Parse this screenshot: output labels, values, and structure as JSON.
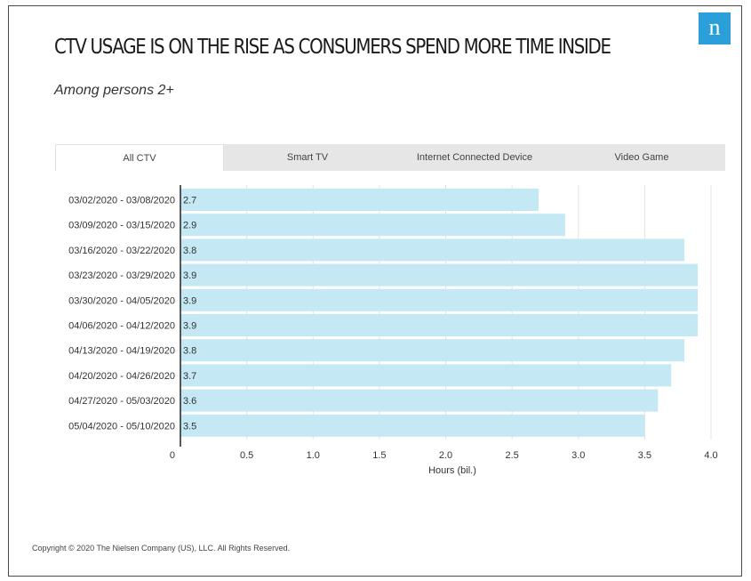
{
  "header": {
    "title": "CTV USAGE IS ON THE RISE AS CONSUMERS SPEND MORE TIME INSIDE",
    "subtitle": "Among persons 2+",
    "logo_text": "n"
  },
  "tabs": [
    {
      "label": "All CTV",
      "active": true
    },
    {
      "label": "Smart TV",
      "active": false
    },
    {
      "label": "Internet Connected Device",
      "active": false
    },
    {
      "label": "Video Game",
      "active": false
    }
  ],
  "chart_data": {
    "type": "bar",
    "orientation": "horizontal",
    "categories": [
      "03/02/2020 - 03/08/2020",
      "03/09/2020 - 03/15/2020",
      "03/16/2020 - 03/22/2020",
      "03/23/2020 - 03/29/2020",
      "03/30/2020 - 04/05/2020",
      "04/06/2020 - 04/12/2020",
      "04/13/2020 - 04/19/2020",
      "04/20/2020 - 04/26/2020",
      "04/27/2020 - 05/03/2020",
      "05/04/2020 - 05/10/2020"
    ],
    "values": [
      2.7,
      2.9,
      3.8,
      3.9,
      3.9,
      3.9,
      3.8,
      3.7,
      3.6,
      3.5
    ],
    "value_labels": [
      "2.7",
      "2.9",
      "3.8",
      "3.9",
      "3.9",
      "3.9",
      "3.8",
      "3.7",
      "3.6",
      "3.5"
    ],
    "xticks": [
      "0",
      "0.5",
      "1.0",
      "1.5",
      "2.0",
      "2.5",
      "3.0",
      "3.5",
      "4.0"
    ],
    "xlabel": "Hours (bil.)",
    "ylabel": "",
    "xlim": [
      0,
      4.0
    ],
    "grid": true,
    "bar_color": "#c5e8f5"
  },
  "footer": {
    "copyright": "Copyright © 2020 The Nielsen Company (US), LLC. All Rights Reserved."
  }
}
